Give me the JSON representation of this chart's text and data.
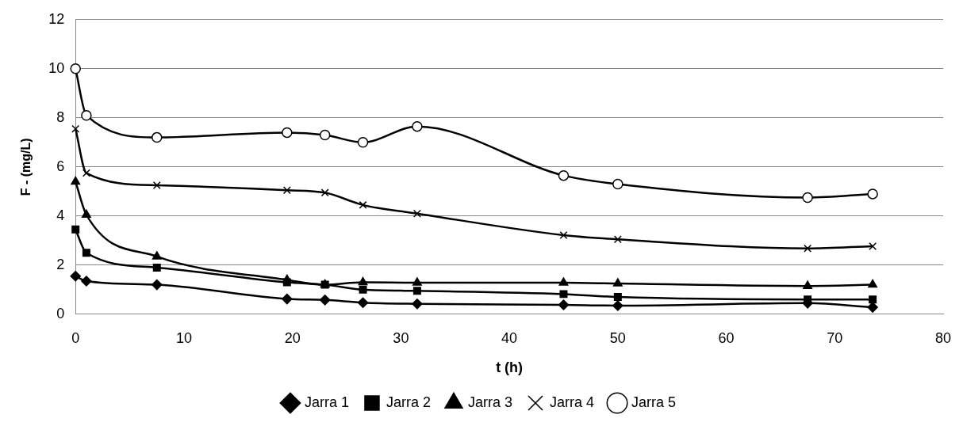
{
  "chart_data": {
    "type": "line",
    "xlabel": "t (h)",
    "ylabel": "F - (mg/L)",
    "x": [
      0,
      1,
      7.5,
      19.5,
      23,
      26.5,
      31.5,
      45,
      50,
      67.5,
      73.5
    ],
    "xlim": [
      0,
      80
    ],
    "xticks": [
      0,
      10,
      20,
      30,
      40,
      50,
      60,
      70,
      80
    ],
    "ylim": [
      0,
      12
    ],
    "yticks": [
      0,
      2,
      4,
      6,
      8,
      10,
      12
    ],
    "grid": "y",
    "legend": "bottom",
    "series": [
      {
        "name": "Jarra 1",
        "color": "#000000",
        "marker": "diamond",
        "values": [
          1.55,
          1.35,
          1.2,
          0.62,
          0.58,
          0.47,
          0.42,
          0.38,
          0.35,
          0.45,
          0.28
        ]
      },
      {
        "name": "Jarra 2",
        "color": "#000000",
        "marker": "square",
        "values": [
          3.45,
          2.5,
          1.9,
          1.3,
          1.2,
          1.0,
          0.95,
          0.82,
          0.7,
          0.6,
          0.6
        ]
      },
      {
        "name": "Jarra 3",
        "color": "#000000",
        "marker": "triangle",
        "values": [
          5.4,
          4.05,
          2.35,
          1.4,
          1.2,
          1.3,
          1.28,
          1.28,
          1.25,
          1.15,
          1.2
        ]
      },
      {
        "name": "Jarra 4",
        "color": "#000000",
        "marker": "cross",
        "values": [
          7.55,
          5.75,
          5.25,
          5.05,
          4.95,
          4.45,
          4.1,
          3.22,
          3.05,
          2.68,
          2.77
        ]
      },
      {
        "name": "Jarra 5",
        "color": "#000000",
        "marker": "circle",
        "values": [
          10.0,
          8.1,
          7.2,
          7.4,
          7.3,
          7.0,
          7.65,
          5.65,
          5.3,
          4.75,
          4.9
        ]
      }
    ]
  }
}
